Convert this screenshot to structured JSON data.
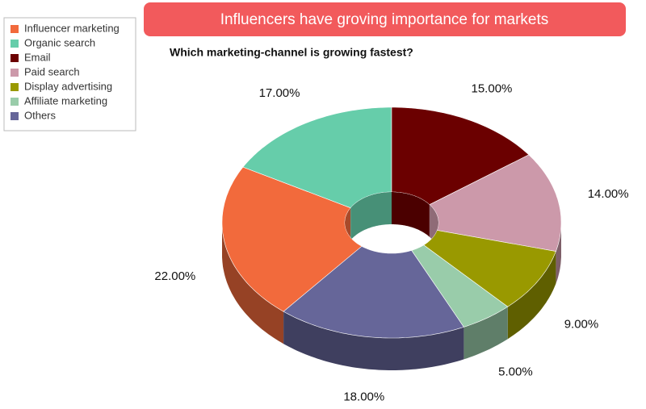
{
  "chart_data": {
    "type": "donut3d",
    "title": "Influencers have groving importance for markets",
    "subtitle": "Which marketing-channel is growing fastest?",
    "categories": [
      "Influencer marketing",
      "Organic search",
      "Email",
      "Paid search",
      "Display advertising",
      "Affiliate marketing",
      "Others"
    ],
    "values": [
      22,
      17,
      15,
      14,
      9,
      5,
      18
    ],
    "value_labels": [
      "22.00%",
      "17.00%",
      "15.00%",
      "14.00%",
      "9.00%",
      "5.00%",
      "18.00%"
    ],
    "colors": [
      "#f26a3c",
      "#66cdaa",
      "#6b0000",
      "#cc99aa",
      "#999900",
      "#99ccaa",
      "#666699"
    ],
    "legend": "top-left"
  }
}
